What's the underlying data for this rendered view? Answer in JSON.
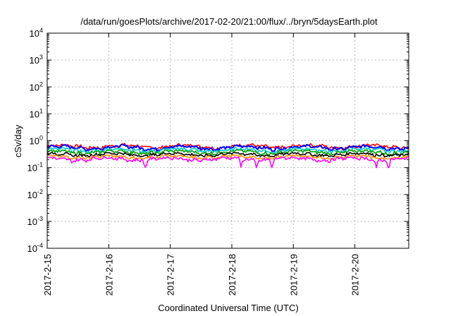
{
  "chart_data": {
    "type": "line",
    "title": "/data/run/goesPlots/archive/2017-02-20/21:00/flux/../bryn/5daysEarth.plot",
    "xlabel": "Coordinated Universal Time (UTC)",
    "ylabel": "cSv/day",
    "yscale": "log",
    "ylim": [
      0.0001,
      10000
    ],
    "y_ticks": [
      {
        "base": "10",
        "exp": "-4"
      },
      {
        "base": "10",
        "exp": "-3"
      },
      {
        "base": "10",
        "exp": "-2"
      },
      {
        "base": "10",
        "exp": "-1"
      },
      {
        "base": "10",
        "exp": "0"
      },
      {
        "base": "10",
        "exp": "1"
      },
      {
        "base": "10",
        "exp": "2"
      },
      {
        "base": "10",
        "exp": "3"
      },
      {
        "base": "10",
        "exp": "4"
      }
    ],
    "x_ticks": [
      "2017-2-15",
      "2017-2-16",
      "2017-2-17",
      "2017-2-18",
      "2017-2-19",
      "2017-2-20"
    ],
    "xlim": [
      "2017-2-15",
      "2017-2-20 21:00"
    ],
    "grid": true,
    "series": [
      {
        "color": "#ff0000",
        "baseline": 0.62,
        "dips": [],
        "values_range": [
          0.45,
          0.8
        ]
      },
      {
        "color": "#0000ff",
        "baseline": 0.56,
        "dips": [],
        "values_range": [
          0.4,
          0.75
        ]
      },
      {
        "color": "#00c8c8",
        "baseline": 0.45,
        "dips": [],
        "values_range": [
          0.35,
          0.55
        ]
      },
      {
        "color": "#00a000",
        "baseline": 0.38,
        "dips": [],
        "values_range": [
          0.3,
          0.45
        ]
      },
      {
        "color": "#000000",
        "baseline": 0.31,
        "dips": [],
        "values_range": [
          0.26,
          0.36
        ]
      },
      {
        "color": "#ff8c00",
        "baseline": 0.25,
        "dips": [],
        "values_range": [
          0.21,
          0.29
        ]
      },
      {
        "color": "#ff00ff",
        "baseline": 0.21,
        "dips": [
          1.6,
          3.15,
          3.4,
          3.65,
          5.35,
          5.55
        ],
        "values_range": [
          0.1,
          0.25
        ]
      }
    ]
  }
}
